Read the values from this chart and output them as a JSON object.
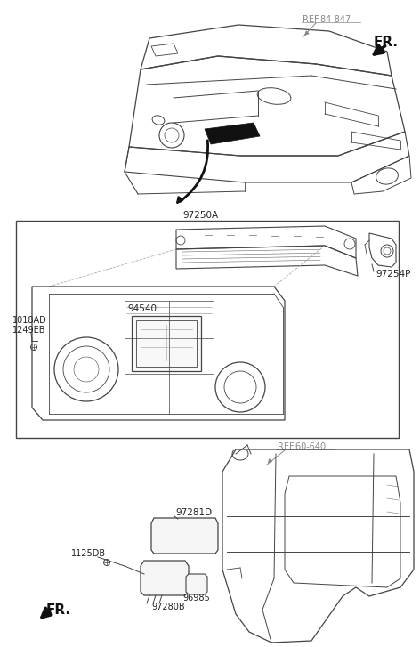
{
  "bg_color": "#ffffff",
  "lc": "#444444",
  "dc": "#111111",
  "gc": "#888888",
  "fig_width": 4.72,
  "fig_height": 7.27,
  "labels": {
    "ref_84_847": "REF.84-847",
    "FR_top": "FR.",
    "part_97250A": "97250A",
    "part_1018AD": "1018AD",
    "part_1249EB": "1249EB",
    "part_94540": "94540",
    "part_97254P": "97254P",
    "ref_60_640": "REF.60-640",
    "part_97281D": "97281D",
    "part_1125DB": "1125DB",
    "FR_bottom": "FR.",
    "part_96985": "96985",
    "part_97280B": "97280B"
  }
}
